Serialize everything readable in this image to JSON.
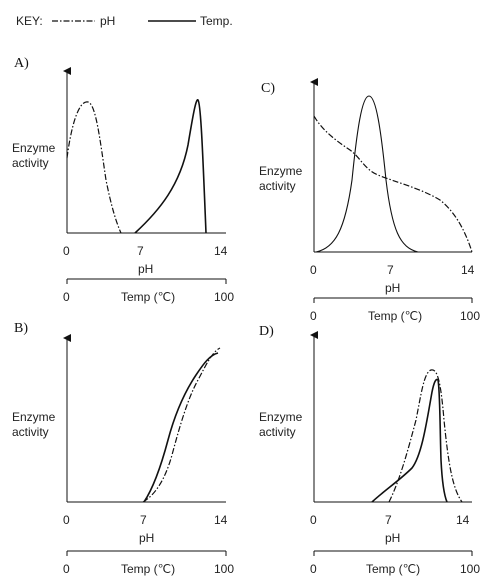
{
  "key": {
    "title": "KEY:",
    "ph_label": "pH",
    "temp_label": "Temp."
  },
  "y_label_line1": "Enzyme",
  "y_label_line2": "activity",
  "ph_axis": {
    "label": "pH",
    "ticks": [
      "0",
      "7",
      "14"
    ]
  },
  "temp_axis": {
    "label": "Temp (℃)",
    "ticks": [
      "0",
      "100"
    ]
  },
  "panels": {
    "A": "A)",
    "B": "B)",
    "C": "C)",
    "D": "D)"
  }
}
